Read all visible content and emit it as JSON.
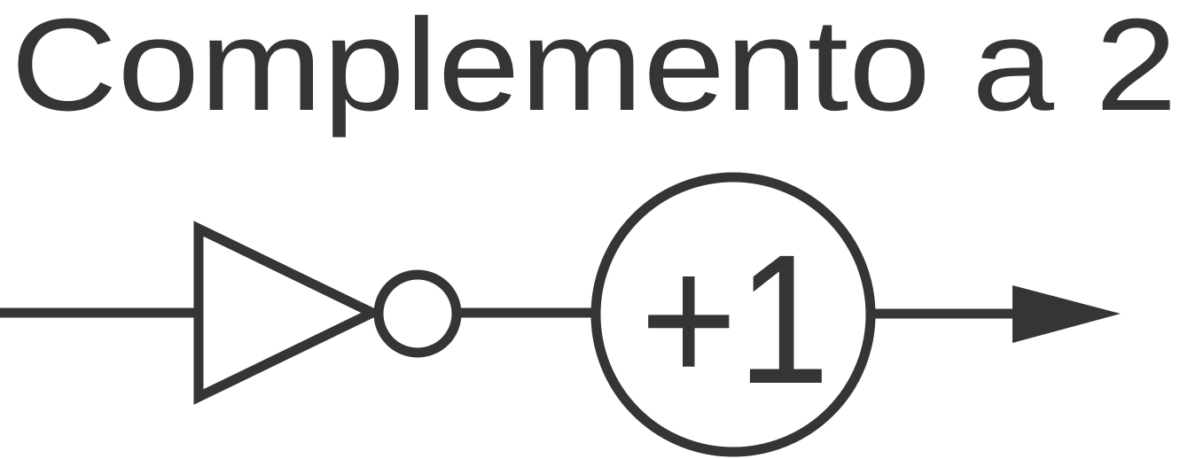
{
  "title": "Complemento a 2",
  "adder": {
    "label": "+1"
  },
  "colors": {
    "stroke": "#373435",
    "text": "#373435",
    "background": "#ffffff",
    "fill": "#ffffff"
  }
}
